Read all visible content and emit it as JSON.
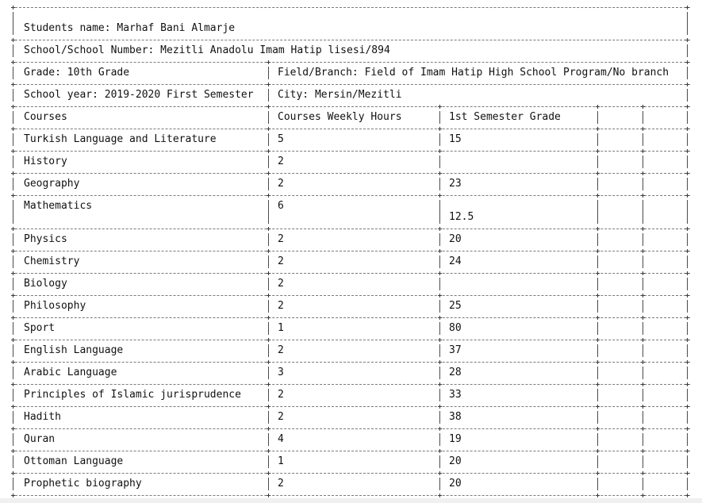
{
  "header": {
    "student_name": "Students name: Marhaf Bani Almarje",
    "school": "School/School Number: Mezitli Anadolu Imam Hatip lisesi/894",
    "grade": "Grade: 10th Grade",
    "field": "Field/Branch: Field of Imam Hatip High School Program/No branch",
    "school_year": "School year: 2019-2020 First Semester",
    "city": "City: Mersin/Mezitli"
  },
  "table": {
    "columns": [
      "Courses",
      "Courses Weekly Hours",
      "1st Semester Grade"
    ],
    "rows": [
      {
        "course": "Turkish Language and Literature",
        "hours": "5",
        "grade": "15"
      },
      {
        "course": "History",
        "hours": "2",
        "grade": ""
      },
      {
        "course": "Geography",
        "hours": "2",
        "grade": "23"
      },
      {
        "course": "Mathematics",
        "hours": "6",
        "grade": "12.5"
      },
      {
        "course": "Physics",
        "hours": "2",
        "grade": "20"
      },
      {
        "course": "Chemistry",
        "hours": "2",
        "grade": "24"
      },
      {
        "course": "Biology",
        "hours": "2",
        "grade": ""
      },
      {
        "course": "Philosophy",
        "hours": "2",
        "grade": "25"
      },
      {
        "course": "Sport",
        "hours": "1",
        "grade": "80"
      },
      {
        "course": "English Language",
        "hours": "2",
        "grade": "37"
      },
      {
        "course": "Arabic Language",
        "hours": "3",
        "grade": "28"
      },
      {
        "course": "Principles of Islamic jurisprudence",
        "hours": "2",
        "grade": "33"
      },
      {
        "course": "Hadith",
        "hours": "2",
        "grade": "38"
      },
      {
        "course": "Quran",
        "hours": "4",
        "grade": "19"
      },
      {
        "course": "Ottoman Language",
        "hours": "1",
        "grade": "20"
      },
      {
        "course": "Prophetic biography",
        "hours": "2",
        "grade": "20"
      }
    ]
  }
}
